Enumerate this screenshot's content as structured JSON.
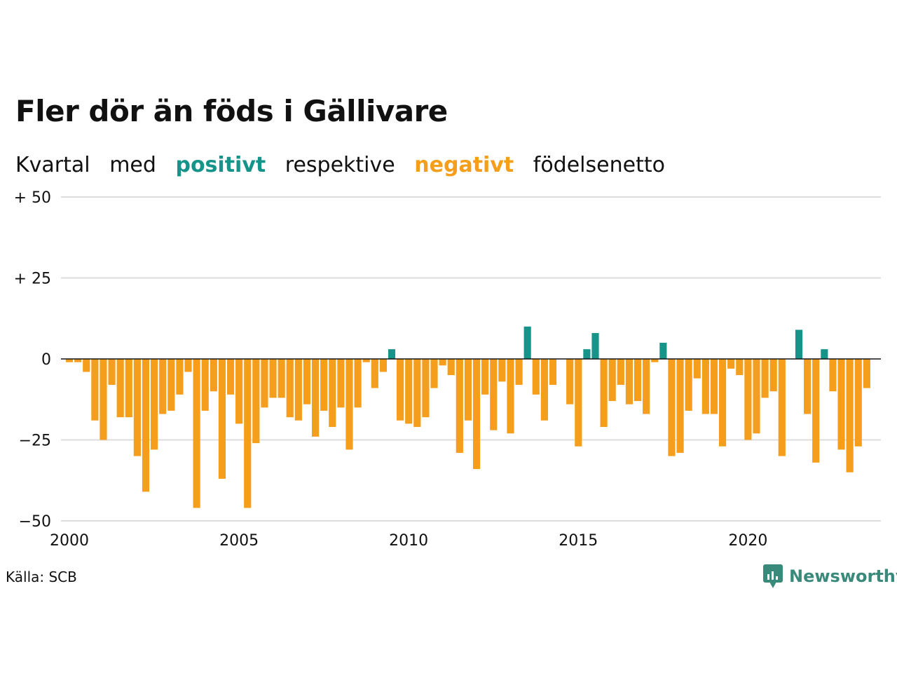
{
  "title": "Fler dör än föds i Gällivare",
  "subtitle": {
    "w1": "Kvartal",
    "w2": "med",
    "positive": "positivt",
    "w3": "respektive",
    "negative": "negativt",
    "w4": "födelsenetto"
  },
  "source": "Källa: SCB",
  "brand": "Newsworthy",
  "colors": {
    "positive": "#17948a",
    "negative": "#f59e1b",
    "grid": "#dddddd",
    "text": "#111111",
    "brand": "#3a8a7b"
  },
  "chart_data": {
    "type": "bar",
    "ylim": [
      -50,
      50
    ],
    "yticks": [
      50,
      25,
      0,
      -25,
      -50
    ],
    "ytick_labels": [
      "+ 50",
      "+ 25",
      "0",
      "−25",
      "−50"
    ],
    "xlim": [
      2000,
      2023.75
    ],
    "xticks": [
      2000,
      2005,
      2010,
      2015,
      2020
    ],
    "xtick_labels": [
      "2000",
      "2005",
      "2010",
      "2015",
      "2020"
    ],
    "categories": [
      "2000K1",
      "2000K2",
      "2000K3",
      "2000K4",
      "2001K1",
      "2001K2",
      "2001K3",
      "2001K4",
      "2002K1",
      "2002K2",
      "2002K3",
      "2002K4",
      "2003K1",
      "2003K2",
      "2003K3",
      "2003K4",
      "2004K1",
      "2004K2",
      "2004K3",
      "2004K4",
      "2005K1",
      "2005K2",
      "2005K3",
      "2005K4",
      "2006K1",
      "2006K2",
      "2006K3",
      "2006K4",
      "2007K1",
      "2007K2",
      "2007K3",
      "2007K4",
      "2008K1",
      "2008K2",
      "2008K3",
      "2008K4",
      "2009K1",
      "2009K2",
      "2009K3",
      "2009K4",
      "2010K1",
      "2010K2",
      "2010K3",
      "2010K4",
      "2011K1",
      "2011K2",
      "2011K3",
      "2011K4",
      "2012K1",
      "2012K2",
      "2012K3",
      "2012K4",
      "2013K1",
      "2013K2",
      "2013K3",
      "2013K4",
      "2014K1",
      "2014K2",
      "2014K3",
      "2014K4",
      "2015K1",
      "2015K2",
      "2015K3",
      "2015K4",
      "2016K1",
      "2016K2",
      "2016K3",
      "2016K4",
      "2017K1",
      "2017K2",
      "2017K3",
      "2017K4",
      "2018K1",
      "2018K2",
      "2018K3",
      "2018K4",
      "2019K1",
      "2019K2",
      "2019K3",
      "2019K4",
      "2020K1",
      "2020K2",
      "2020K3",
      "2020K4",
      "2021K1",
      "2021K2",
      "2021K3",
      "2021K4",
      "2022K1",
      "2022K2",
      "2022K3",
      "2022K4",
      "2023K1",
      "2023K2",
      "2023K3",
      "2023K4"
    ],
    "values": [
      -1,
      -1,
      -4,
      -19,
      -25,
      -8,
      -18,
      -18,
      -30,
      -41,
      -28,
      -17,
      -16,
      -11,
      -4,
      -46,
      -16,
      -10,
      -37,
      -11,
      -20,
      -46,
      -26,
      -15,
      -12,
      -12,
      -18,
      -19,
      -14,
      -24,
      -16,
      -21,
      -15,
      -28,
      -15,
      -1,
      -9,
      -4,
      3,
      -19,
      -20,
      -21,
      -18,
      -9,
      -2,
      -5,
      -29,
      -19,
      -34,
      -11,
      -22,
      -7,
      -23,
      -8,
      10,
      -11,
      -19,
      -8,
      0,
      -14,
      -27,
      3,
      8,
      -21,
      -13,
      -8,
      -14,
      -13,
      -17,
      -1,
      5,
      -30,
      -29,
      -16,
      -6,
      -17,
      -17,
      -27,
      -3,
      -5,
      -25,
      -23,
      -12,
      -10,
      -30,
      0,
      9,
      -17,
      -32,
      3,
      -10,
      -28,
      -35,
      -27,
      -9,
      0
    ]
  }
}
